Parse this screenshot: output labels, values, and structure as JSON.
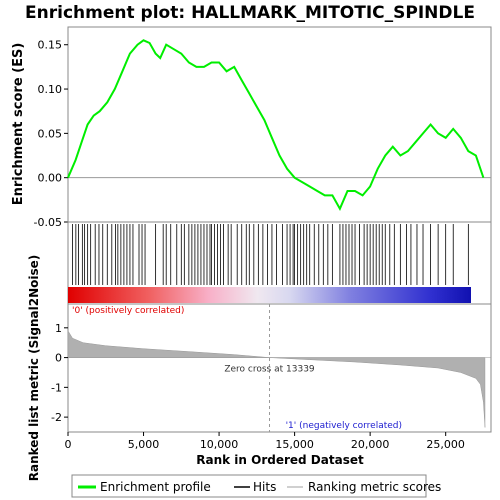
{
  "chart_data": {
    "type": "line",
    "title": "Enrichment plot: HALLMARK_MITOTIC_SPINDLE",
    "top_panel": {
      "ylabel": "Enrichment score (ES)",
      "ylim": [
        -0.05,
        0.17
      ],
      "yticks": [
        -0.05,
        0.0,
        0.05,
        0.1,
        0.15
      ],
      "ytick_labels": [
        "-0.05",
        "0.00",
        "0.05",
        "0.10",
        "0.15"
      ],
      "series": [
        {
          "name": "Enrichment profile",
          "color": "#00ee00",
          "x": [
            0,
            500,
            900,
            1300,
            1700,
            2100,
            2600,
            3100,
            3600,
            4100,
            4600,
            5000,
            5400,
            5800,
            6100,
            6500,
            7000,
            7500,
            8000,
            8500,
            9000,
            9500,
            10000,
            10500,
            11000,
            11500,
            12000,
            12500,
            13000,
            13500,
            14000,
            14500,
            15000,
            15500,
            16000,
            16500,
            17000,
            17500,
            18000,
            18500,
            19000,
            19500,
            20000,
            20500,
            21000,
            21500,
            22000,
            22500,
            23000,
            23500,
            24000,
            24500,
            25000,
            25500,
            26000,
            26500,
            27000,
            27500
          ],
          "y": [
            0.0,
            0.02,
            0.04,
            0.06,
            0.07,
            0.075,
            0.085,
            0.1,
            0.12,
            0.14,
            0.15,
            0.155,
            0.152,
            0.14,
            0.135,
            0.15,
            0.145,
            0.14,
            0.13,
            0.125,
            0.125,
            0.13,
            0.13,
            0.12,
            0.125,
            0.11,
            0.095,
            0.08,
            0.065,
            0.045,
            0.025,
            0.01,
            0.0,
            -0.005,
            -0.01,
            -0.015,
            -0.02,
            -0.02,
            -0.035,
            -0.015,
            -0.015,
            -0.02,
            -0.01,
            0.01,
            0.025,
            0.035,
            0.025,
            0.03,
            0.04,
            0.05,
            0.06,
            0.05,
            0.045,
            0.055,
            0.045,
            0.03,
            0.025,
            0.0
          ]
        }
      ]
    },
    "hits_panel": {
      "hit_positions": [
        300,
        520,
        700,
        950,
        1100,
        1300,
        1500,
        1800,
        2050,
        2300,
        2600,
        2900,
        3150,
        3300,
        3500,
        3700,
        3900,
        4100,
        4300,
        4700,
        4900,
        5100,
        5800,
        6300,
        6500,
        6800,
        7200,
        7500,
        7700,
        8000,
        8200,
        8400,
        8600,
        8800,
        9000,
        9200,
        9400,
        9500,
        9700,
        9900,
        10100,
        10300,
        10600,
        10800,
        11200,
        11500,
        11800,
        12000,
        12300,
        12600,
        12900,
        13200,
        13500,
        13800,
        14200,
        14500,
        14700,
        14900,
        15000,
        15200,
        15400,
        15600,
        15800,
        16000,
        16300,
        16600,
        16900,
        17200,
        17500,
        18000,
        18200,
        18400,
        18600,
        18800,
        19000,
        19300,
        19600,
        19800,
        20000,
        20200,
        20400,
        20600,
        20800,
        21000,
        21300,
        21600,
        22000,
        22400,
        22700,
        23100,
        23500,
        24000,
        24500,
        25000,
        25500,
        26500
      ]
    },
    "rank_panel": {
      "ylabel": "Ranked list metric (Signal2Noise)",
      "xlabel": "Rank in Ordered Dataset",
      "ylim": [
        -2.5,
        1.8
      ],
      "yticks": [
        -2,
        -1,
        0,
        1
      ],
      "ytick_labels": [
        "-2",
        "-1",
        "0",
        "1"
      ],
      "xlim": [
        0,
        28000
      ],
      "xticks": [
        0,
        5000,
        10000,
        15000,
        20000,
        25000
      ],
      "xtick_labels": [
        "0",
        "5,000",
        "10,000",
        "15,000",
        "20,000",
        "25,000"
      ],
      "zero_cross": 13339,
      "zero_cross_label": "Zero cross at 13339",
      "positive_label": "'0' (positively correlated)",
      "negative_label": "'1' (negatively correlated)",
      "metric_x": [
        0,
        300,
        1000,
        2500,
        5000,
        8000,
        11000,
        13339,
        16000,
        19000,
        22000,
        24500,
        26000,
        27000,
        27300,
        27500,
        27600
      ],
      "metric_y": [
        0.9,
        0.65,
        0.5,
        0.4,
        0.3,
        0.2,
        0.1,
        0.0,
        -0.07,
        -0.15,
        -0.25,
        -0.35,
        -0.5,
        -0.7,
        -0.9,
        -1.5,
        -2.35
      ]
    },
    "legend": [
      "Enrichment profile",
      "Hits",
      "Ranking metric scores"
    ],
    "colors": {
      "profile": "#00ee00",
      "hits": "#000000",
      "metric_fill": "#b0b0b0",
      "positive_text": "#e00000",
      "negative_text": "#2020d0"
    }
  }
}
